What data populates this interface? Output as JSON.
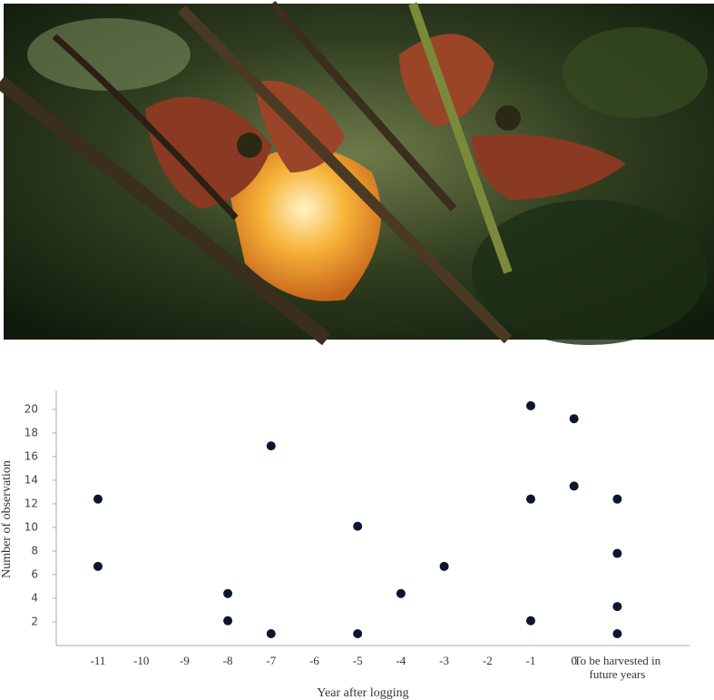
{
  "chart_data": {
    "type": "scatter",
    "x_label": "Year after logging",
    "y_label": "Number of observation",
    "categories": [
      "-11",
      "-10",
      "-9",
      "-8",
      "-7",
      "-6",
      "-5",
      "-4",
      "-3",
      "-2",
      "-1",
      "0",
      "To be harvested in future years"
    ],
    "points": {
      "x": [
        "-11",
        "-11",
        "-8",
        "-8",
        "-7",
        "-7",
        "-5",
        "-5",
        "-4",
        "-3",
        "-1",
        "-1",
        "-1",
        "0",
        "0",
        "To be harvested in future years",
        "To be harvested in future years",
        "To be harvested in future years",
        "To be harvested in future years"
      ],
      "y": [
        12.4,
        6.7,
        4.4,
        2.1,
        16.9,
        1.0,
        10.1,
        1.0,
        4.4,
        6.7,
        20.3,
        12.4,
        2.1,
        19.2,
        13.5,
        12.4,
        7.8,
        3.3,
        1.0
      ]
    },
    "color": "#0b1730",
    "ylim": [
      0,
      21.6
    ],
    "yticks": [
      2,
      4,
      6,
      8,
      10,
      12,
      14,
      16,
      18,
      20
    ],
    "grid": false
  }
}
